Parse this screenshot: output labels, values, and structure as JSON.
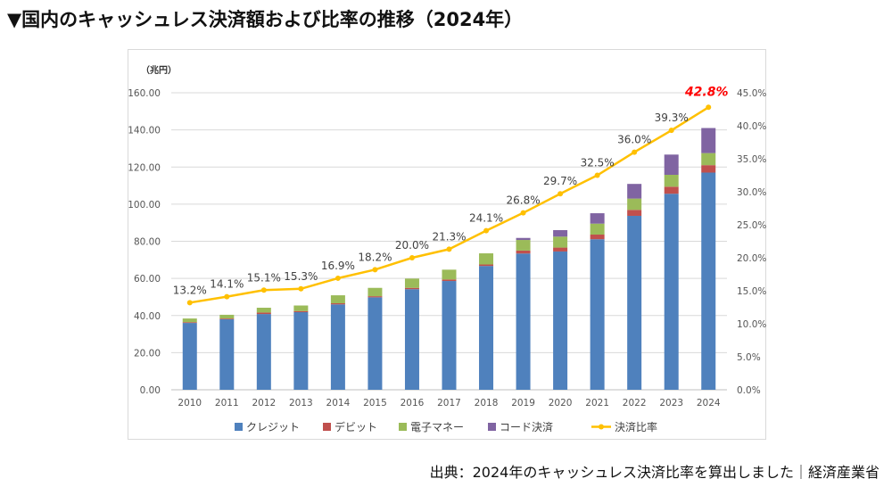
{
  "title": "▼国内のキャッシュレス決済額および比率の推移（2024年）",
  "source": "出典：2024年のキャッシュレス決済比率を算出しました｜経済産業省",
  "chart_data": {
    "type": "bar",
    "stacked": true,
    "left_axis_unit": "（兆円）",
    "categories": [
      "2010",
      "2011",
      "2012",
      "2013",
      "2014",
      "2015",
      "2016",
      "2017",
      "2018",
      "2019",
      "2020",
      "2021",
      "2022",
      "2023",
      "2024"
    ],
    "ylim": [
      0,
      160
    ],
    "yticks": [
      "0.00",
      "20.00",
      "40.00",
      "60.00",
      "80.00",
      "100.00",
      "120.00",
      "140.00",
      "160.00"
    ],
    "y2lim": [
      0,
      45
    ],
    "y2ticks": [
      "0.0%",
      "5.0%",
      "10.0%",
      "15.0%",
      "20.0%",
      "25.0%",
      "30.0%",
      "35.0%",
      "40.0%",
      "45.0%"
    ],
    "grid": true,
    "legend_position": "bottom",
    "series": [
      {
        "name": "クレジット",
        "color": "#4f81bd",
        "values": [
          36.0,
          38.0,
          40.8,
          41.8,
          46.0,
          49.8,
          54.2,
          58.6,
          66.7,
          73.4,
          74.5,
          81.1,
          93.7,
          105.6,
          117.0
        ]
      },
      {
        "name": "デビット",
        "color": "#c0504d",
        "values": [
          0.4,
          0.4,
          0.8,
          0.6,
          0.6,
          0.6,
          0.7,
          0.8,
          0.8,
          1.6,
          2.1,
          2.5,
          3.2,
          3.8,
          4.0
        ]
      },
      {
        "name": "電子マネー",
        "color": "#9bbb59",
        "values": [
          2.0,
          2.0,
          2.6,
          3.0,
          4.3,
          4.5,
          5.0,
          5.3,
          6.0,
          5.7,
          5.9,
          5.9,
          6.1,
          6.4,
          6.5
        ]
      },
      {
        "name": "コード決済",
        "color": "#8064a2",
        "values": [
          0,
          0,
          0,
          0,
          0,
          0,
          0,
          0,
          0,
          1.1,
          3.5,
          5.6,
          7.9,
          10.9,
          13.5
        ]
      }
    ],
    "line": {
      "name": "決済比率",
      "color": "#ffc000",
      "axis": "right",
      "values": [
        13.2,
        14.1,
        15.1,
        15.3,
        16.9,
        18.2,
        20.0,
        21.3,
        24.1,
        26.8,
        29.7,
        32.5,
        36.0,
        39.3,
        42.8
      ],
      "labels": [
        "13.2%",
        "14.1%",
        "15.1%",
        "15.3%",
        "16.9%",
        "18.2%",
        "20.0%",
        "21.3%",
        "24.1%",
        "26.8%",
        "29.7%",
        "32.5%",
        "36.0%",
        "39.3%",
        "42.8%"
      ],
      "highlight_color": "#ff0000"
    }
  }
}
